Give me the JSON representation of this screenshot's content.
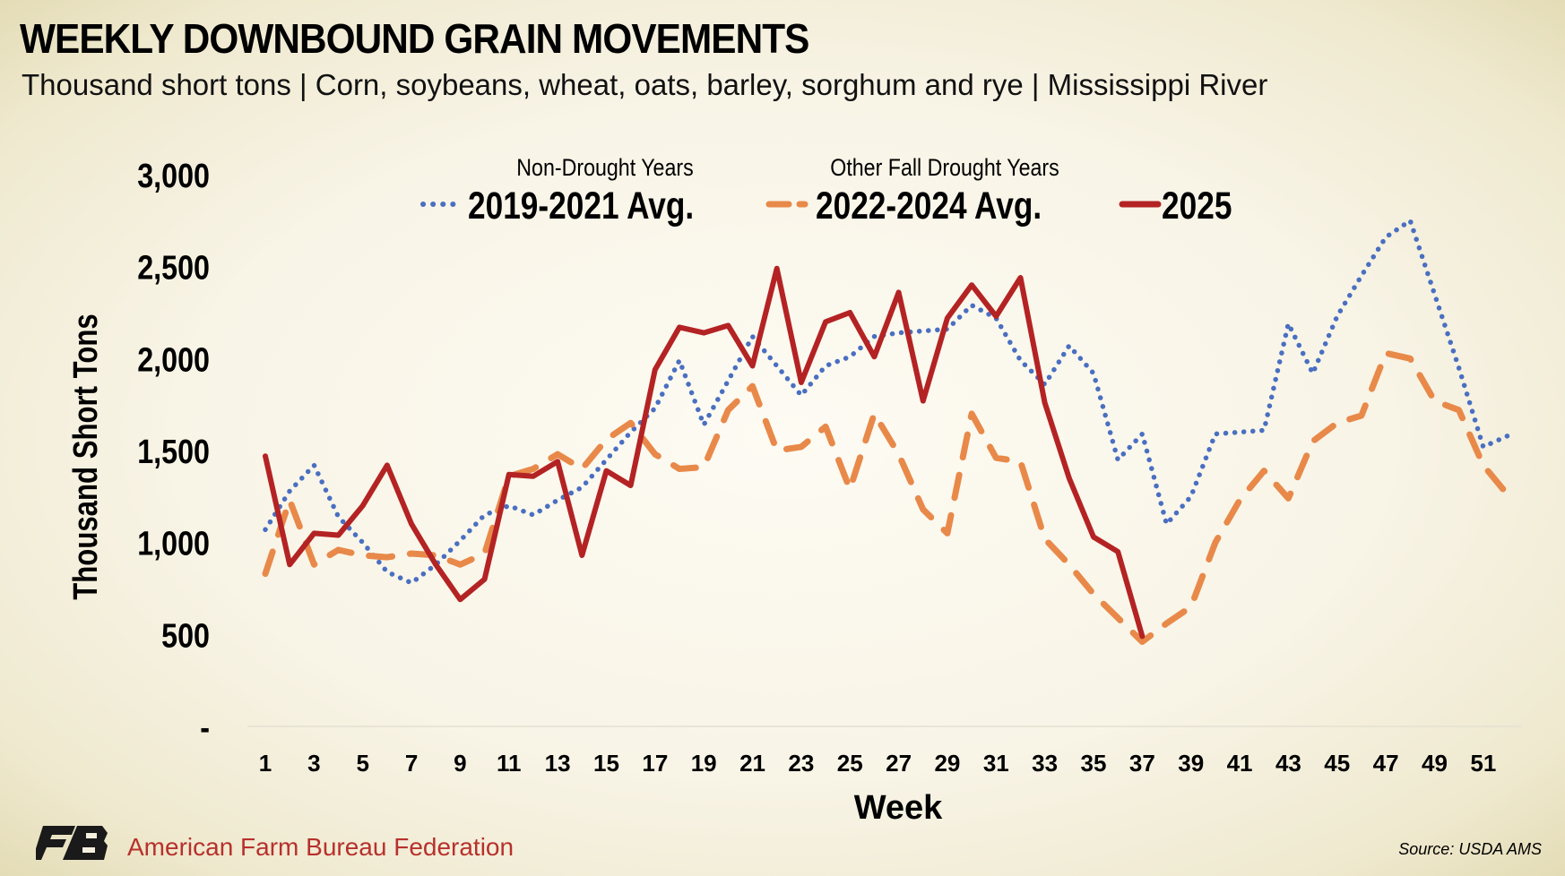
{
  "header": {
    "title": "WEEKLY DOWNBOUND GRAIN MOVEMENTS",
    "subtitle": "Thousand short tons | Corn, soybeans, wheat, oats, barley, sorghum and rye | Mississippi River"
  },
  "footer": {
    "organization": "American Farm Bureau Federation",
    "source": "Source: USDA AMS"
  },
  "chart_data": {
    "type": "line",
    "xlabel": "Week",
    "ylabel": "Thousand Short Tons",
    "ylim": [
      0,
      3000
    ],
    "y_ticks": [
      0,
      500,
      1000,
      1500,
      2000,
      2500,
      3000
    ],
    "y_tick_labels": [
      "-",
      "500",
      "1,000",
      "1,500",
      "2,000",
      "2,500",
      "3,000"
    ],
    "x_range": [
      1,
      52
    ],
    "x_tick_labels": [
      "1",
      "3",
      "5",
      "7",
      "9",
      "11",
      "13",
      "15",
      "17",
      "19",
      "21",
      "23",
      "25",
      "27",
      "29",
      "31",
      "33",
      "35",
      "37",
      "39",
      "41",
      "43",
      "45",
      "47",
      "49",
      "51"
    ],
    "grid": false,
    "legend_position": "top",
    "series": [
      {
        "name": "2019-2021 Avg.",
        "group_label": "Non-Drought Years",
        "color": "#4a6fc1",
        "style": "dotted",
        "x": [
          1,
          2,
          3,
          4,
          5,
          6,
          7,
          8,
          9,
          10,
          11,
          12,
          13,
          14,
          15,
          16,
          17,
          18,
          19,
          20,
          21,
          22,
          23,
          24,
          25,
          26,
          27,
          28,
          29,
          30,
          31,
          32,
          33,
          34,
          35,
          36,
          37,
          38,
          39,
          40,
          41,
          42,
          43,
          44,
          45,
          46,
          47,
          48,
          49,
          50,
          51,
          52
        ],
        "values": [
          1070,
          1280,
          1420,
          1140,
          1000,
          840,
          780,
          880,
          1010,
          1150,
          1200,
          1150,
          1230,
          1300,
          1450,
          1600,
          1730,
          1990,
          1640,
          1880,
          2120,
          1960,
          1800,
          1960,
          2010,
          2120,
          2140,
          2150,
          2160,
          2290,
          2220,
          1990,
          1860,
          2070,
          1920,
          1450,
          1590,
          1100,
          1250,
          1590,
          1600,
          1610,
          2190,
          1920,
          2230,
          2450,
          2660,
          2750,
          2350,
          1950,
          1520,
          1580
        ]
      },
      {
        "name": "2022-2024 Avg.",
        "group_label": "Other Fall Drought Years",
        "color": "#e8894a",
        "style": "dashed",
        "x": [
          1,
          2,
          3,
          4,
          5,
          6,
          7,
          8,
          9,
          10,
          11,
          12,
          13,
          14,
          15,
          16,
          17,
          18,
          19,
          20,
          21,
          22,
          23,
          24,
          25,
          26,
          27,
          28,
          29,
          30,
          31,
          32,
          33,
          34,
          35,
          36,
          37,
          38,
          39,
          40,
          41,
          42,
          43,
          44,
          45,
          46,
          47,
          48,
          49,
          50,
          51,
          52
        ],
        "values": [
          830,
          1230,
          880,
          960,
          930,
          920,
          940,
          930,
          880,
          940,
          1360,
          1400,
          1480,
          1400,
          1560,
          1650,
          1480,
          1400,
          1410,
          1720,
          1850,
          1500,
          1520,
          1630,
          1290,
          1700,
          1480,
          1180,
          1050,
          1700,
          1460,
          1440,
          1020,
          880,
          720,
          590,
          460,
          560,
          650,
          1000,
          1230,
          1390,
          1240,
          1550,
          1650,
          1690,
          2030,
          2000,
          1770,
          1720,
          1420,
          1260
        ]
      },
      {
        "name": "2025",
        "group_label": "",
        "color": "#b42324",
        "style": "solid",
        "x": [
          1,
          2,
          3,
          4,
          5,
          6,
          7,
          8,
          9,
          10,
          11,
          12,
          13,
          14,
          15,
          16,
          17,
          18,
          19,
          20,
          21,
          22,
          23,
          24,
          25,
          26,
          27,
          28,
          29,
          30,
          31,
          32,
          33,
          34,
          35,
          36,
          37
        ],
        "values": [
          1470,
          880,
          1050,
          1040,
          1200,
          1420,
          1100,
          880,
          690,
          800,
          1370,
          1360,
          1440,
          930,
          1390,
          1310,
          1940,
          2170,
          2140,
          2180,
          1960,
          2490,
          1870,
          2200,
          2250,
          2010,
          2360,
          1770,
          2220,
          2400,
          2230,
          2440,
          1760,
          1350,
          1030,
          950,
          490
        ]
      }
    ]
  }
}
